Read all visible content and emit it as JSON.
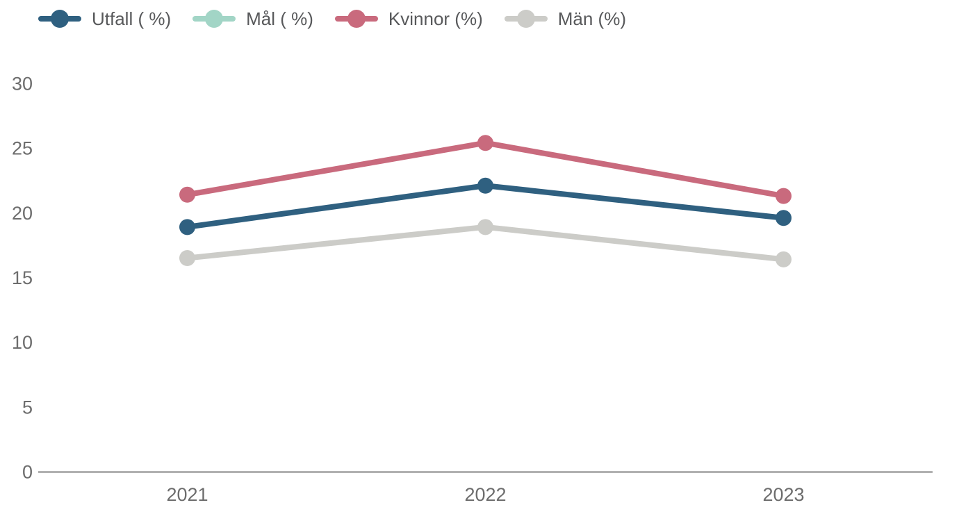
{
  "chart_data": {
    "type": "line",
    "title": "",
    "xlabel": "",
    "ylabel": "",
    "categories": [
      "2021",
      "2022",
      "2023"
    ],
    "series": [
      {
        "name": "Utfall ( %)",
        "color": "#2f6080",
        "visible": true,
        "values": [
          18.9,
          22.1,
          19.6
        ]
      },
      {
        "name": "Mål ( %)",
        "color": "#a2d5c6",
        "visible": false,
        "values": [
          null,
          null,
          null
        ]
      },
      {
        "name": "Kvinnor (%)",
        "color": "#c96a7d",
        "visible": true,
        "values": [
          21.4,
          25.4,
          21.3
        ]
      },
      {
        "name": "Män (%)",
        "color": "#ccccc8",
        "visible": true,
        "values": [
          16.5,
          18.9,
          16.4
        ]
      }
    ],
    "ylim": [
      0,
      30
    ],
    "yticks": [
      0,
      5,
      10,
      15,
      20,
      25,
      30
    ],
    "grid": false,
    "legend_position": "top",
    "colors": {
      "axis_line": "#b1b1b1",
      "tick_label": "#6d6d6d",
      "legend_text": "#58595b",
      "background": "#ffffff"
    }
  }
}
